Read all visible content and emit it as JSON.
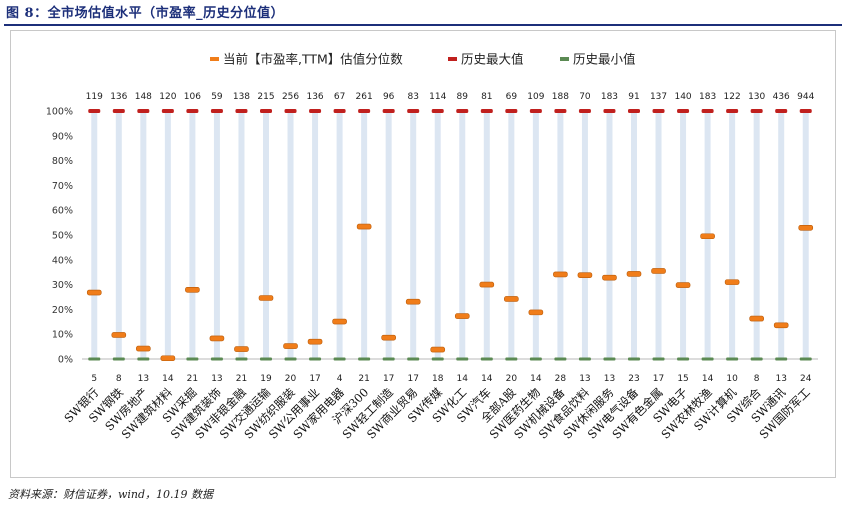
{
  "figure_title": "图 8：全市场估值水平（市盈率_历史分位值）",
  "source_note": "资料来源：财信证券，wind，10.19 数据",
  "colors": {
    "current": "#f07d1a",
    "max": "#c0201e",
    "min": "#5b8a53",
    "range_bar": "#dce6f2",
    "title": "#1c2f7a"
  },
  "chart_data": {
    "type": "range-marker",
    "title": "",
    "xlabel": "",
    "ylabel": "",
    "ylim": [
      0,
      100
    ],
    "yticks": [
      "0%",
      "10%",
      "20%",
      "30%",
      "40%",
      "50%",
      "60%",
      "70%",
      "80%",
      "90%",
      "100%"
    ],
    "legend": [
      "当前【市盈率,TTM】估值分位数",
      "历史最大值",
      "历史最小值"
    ],
    "categories": [
      "SW银行",
      "SW钢铁",
      "SW房地产",
      "SW建筑材料",
      "SW采掘",
      "SW建筑装饰",
      "SW非银金融",
      "SW交通运输",
      "SW纺织服装",
      "SW公用事业",
      "SW家用电器",
      "沪深300",
      "SW轻工制造",
      "SW商业贸易",
      "SW传媒",
      "SW化工",
      "SW汽车",
      "全部A股",
      "SW医药生物",
      "SW机械设备",
      "SW食品饮料",
      "SW休闲服务",
      "SW电气设备",
      "SW有色金属",
      "SW电子",
      "SW农林牧渔",
      "SW计算机",
      "SW综合",
      "SW通讯",
      "SW国防军工"
    ],
    "series": [
      {
        "name": "当前【市盈率,TTM】估值分位数",
        "values": [
          26.8,
          9.7,
          4.2,
          0.3,
          27.9,
          8.3,
          4.0,
          24.6,
          5.2,
          7.0,
          15.1,
          53.4,
          8.6,
          23.1,
          3.8,
          17.3,
          30.0,
          24.2,
          18.8,
          34.1,
          33.8,
          32.8,
          34.3,
          35.5,
          29.8,
          49.5,
          31.0,
          16.3,
          13.6,
          52.9
        ]
      },
      {
        "name": "历史最大值",
        "values": [
          100,
          100,
          100,
          100,
          100,
          100,
          100,
          100,
          100,
          100,
          100,
          100,
          100,
          100,
          100,
          100,
          100,
          100,
          100,
          100,
          100,
          100,
          100,
          100,
          100,
          100,
          100,
          100,
          100,
          100
        ]
      },
      {
        "name": "历史最小值",
        "values": [
          0,
          0,
          0,
          0,
          0,
          0,
          0,
          0,
          0,
          0,
          0,
          0,
          0,
          0,
          0,
          0,
          0,
          0,
          0,
          0,
          0,
          0,
          0,
          0,
          0,
          0,
          0,
          0,
          0,
          0
        ]
      }
    ],
    "max_labels": [
      119,
      136,
      148,
      120,
      106,
      59,
      138,
      215,
      256,
      136,
      67,
      261,
      96,
      83,
      114,
      89,
      81,
      69,
      109,
      188,
      70,
      183,
      91,
      137,
      140,
      183,
      122,
      130,
      436,
      944
    ],
    "min_labels": [
      5,
      8,
      13,
      14,
      21,
      13,
      21,
      19,
      20,
      17,
      4,
      21,
      17,
      17,
      18,
      14,
      14,
      20,
      14,
      28,
      13,
      13,
      23,
      17,
      15,
      14,
      10,
      8,
      13,
      24
    ]
  }
}
